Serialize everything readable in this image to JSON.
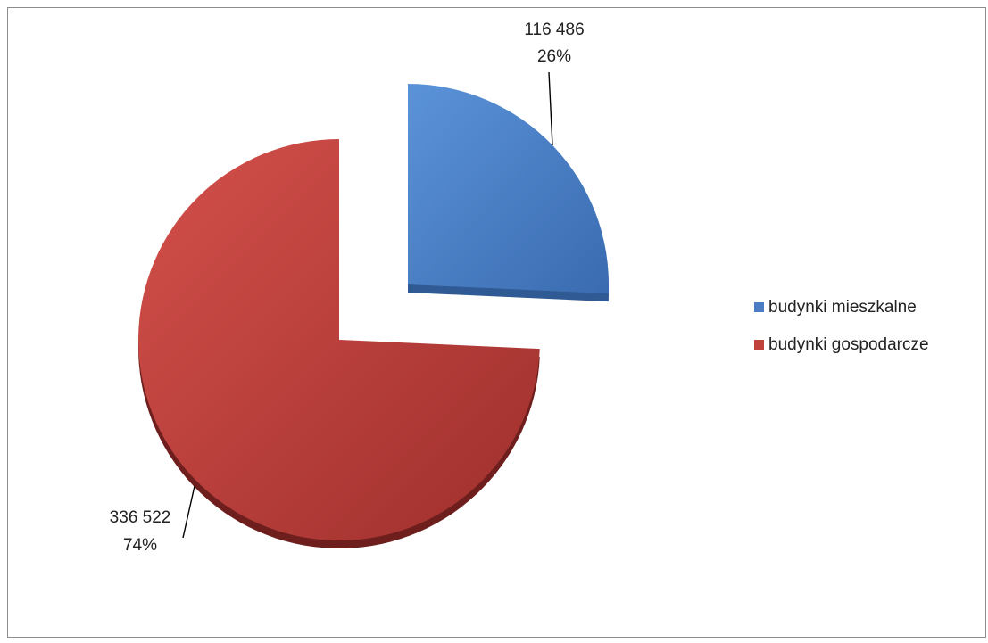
{
  "chart_data": {
    "type": "pie",
    "categories": [
      "budynki mieszkalne",
      "budynki gospodarcze"
    ],
    "values": [
      116486,
      336522
    ],
    "value_labels": [
      "116 486",
      "336 522"
    ],
    "percent_labels": [
      "26%",
      "74%"
    ],
    "colors": [
      "#4a7ec4",
      "#c0403c"
    ],
    "legend_position": "right",
    "title": ""
  }
}
